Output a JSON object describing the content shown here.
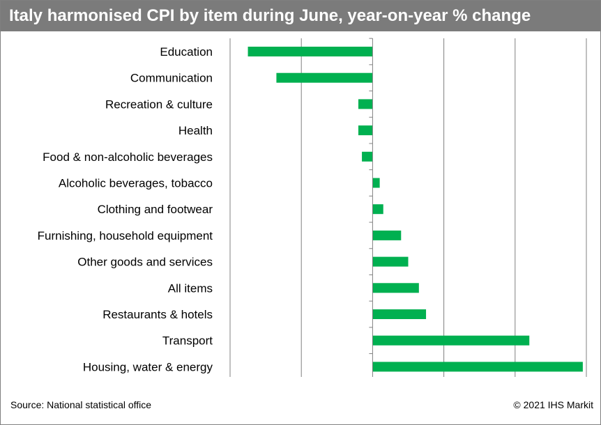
{
  "header": {
    "title": "Italy harmonised CPI by item during June, year-on-year % change"
  },
  "footer": {
    "source": "Source: National statistical office",
    "copyright": "© 2021 IHS Markit"
  },
  "colors": {
    "bar": "#00b050",
    "title_background": "#7b7b7b",
    "gridline": "#808080"
  },
  "chart_data": {
    "type": "bar",
    "orientation": "horizontal",
    "title": "Italy harmonised CPI by item during June, year-on-year % change",
    "xlabel": "",
    "ylabel": "",
    "xlim": [
      -2,
      3
    ],
    "grid": true,
    "legend": "none",
    "categories": [
      "Education",
      "Communication",
      "Recreation & culture",
      "Health",
      "Food & non-alcoholic beverages",
      "Alcoholic beverages, tobacco",
      "Clothing and footwear",
      "Furnishing, household equipment",
      "Other goods and services",
      "All items",
      "Restaurants & hotels",
      "Transport",
      "Housing, water & energy"
    ],
    "values": [
      -1.75,
      -1.35,
      -0.2,
      -0.2,
      -0.15,
      0.1,
      0.15,
      0.4,
      0.5,
      0.65,
      0.75,
      2.2,
      2.95
    ]
  }
}
